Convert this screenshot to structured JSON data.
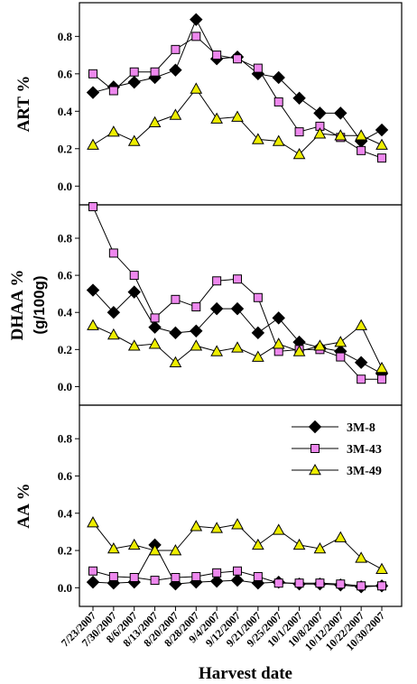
{
  "chart_data": {
    "type": "line",
    "xlabel": "Harvest date",
    "categories": [
      "7/23/2007",
      "7/30/2007",
      "8/6/2007",
      "8/13/2007",
      "8/20/2007",
      "8/28/2007",
      "9/4/2007",
      "9/12/2007",
      "9/21/2007",
      "9/25/2007",
      "10/1/2007",
      "10/8/2007",
      "10/12/2007",
      "10/22/2007",
      "10/30/2007"
    ],
    "legend": {
      "placement": "top-right of bottom panel",
      "entries": [
        "3M-8",
        "3M-43",
        "3M-49"
      ]
    },
    "series_styles": [
      {
        "name": "3M-8",
        "marker": "diamond",
        "color": "#000000"
      },
      {
        "name": "3M-43",
        "marker": "square",
        "color": "#ee88ee"
      },
      {
        "name": "3M-49",
        "marker": "triangle",
        "color": "#eeee00"
      }
    ],
    "panels": [
      {
        "ylabel": "ART %",
        "ylim": [
          -0.1,
          0.98
        ],
        "yticks": [
          "0.0",
          "0.2",
          "0.4",
          "0.6",
          "0.8"
        ],
        "series": [
          {
            "name": "3M-8",
            "values": [
              0.5,
              0.53,
              0.555,
              0.58,
              0.62,
              0.89,
              0.68,
              0.69,
              0.6,
              0.58,
              0.47,
              0.39,
              0.39,
              0.24,
              0.3
            ]
          },
          {
            "name": "3M-43",
            "values": [
              0.6,
              0.51,
              0.61,
              0.61,
              0.73,
              0.8,
              0.7,
              0.68,
              0.63,
              0.45,
              0.29,
              0.32,
              0.26,
              0.19,
              0.15
            ]
          },
          {
            "name": "3M-49",
            "values": [
              0.22,
              0.29,
              0.24,
              0.34,
              0.38,
              0.52,
              0.36,
              0.37,
              0.25,
              0.24,
              0.17,
              0.28,
              0.27,
              0.27,
              0.22
            ]
          }
        ]
      },
      {
        "ylabel": "DHAA %",
        "ylabel_unit": "(g/100g)",
        "ylim": [
          -0.1,
          0.98
        ],
        "yticks": [
          "0.0",
          "0.2",
          "0.4",
          "0.6",
          "0.8"
        ],
        "series": [
          {
            "name": "3M-8",
            "values": [
              0.52,
              0.4,
              0.51,
              0.32,
              0.29,
              0.3,
              0.42,
              0.42,
              0.29,
              0.37,
              0.24,
              0.21,
              0.19,
              0.13,
              0.07
            ]
          },
          {
            "name": "3M-43",
            "values": [
              0.97,
              0.72,
              0.6,
              0.37,
              0.47,
              0.43,
              0.57,
              0.58,
              0.48,
              0.19,
              0.2,
              0.2,
              0.16,
              0.04,
              0.04
            ]
          },
          {
            "name": "3M-49",
            "values": [
              0.33,
              0.28,
              0.22,
              0.23,
              0.13,
              0.22,
              0.19,
              0.21,
              0.16,
              0.23,
              0.19,
              0.22,
              0.24,
              0.33,
              0.1
            ]
          }
        ]
      },
      {
        "ylabel": "AA %",
        "ylim": [
          -0.1,
          0.98
        ],
        "yticks": [
          "0.0",
          "0.2",
          "0.4",
          "0.6",
          "0.8"
        ],
        "series": [
          {
            "name": "3M-8",
            "values": [
              0.03,
              0.025,
              0.03,
              0.23,
              0.02,
              0.03,
              0.035,
              0.04,
              0.025,
              0.03,
              0.02,
              0.02,
              0.015,
              0.005,
              0.01
            ]
          },
          {
            "name": "3M-43",
            "values": [
              0.09,
              0.06,
              0.055,
              0.04,
              0.055,
              0.06,
              0.08,
              0.09,
              0.06,
              0.025,
              0.025,
              0.025,
              0.02,
              0.01,
              0.01
            ]
          },
          {
            "name": "3M-49",
            "values": [
              0.35,
              0.21,
              0.23,
              0.2,
              0.2,
              0.33,
              0.32,
              0.34,
              0.23,
              0.31,
              0.23,
              0.21,
              0.27,
              0.16,
              0.1
            ]
          }
        ]
      }
    ]
  }
}
